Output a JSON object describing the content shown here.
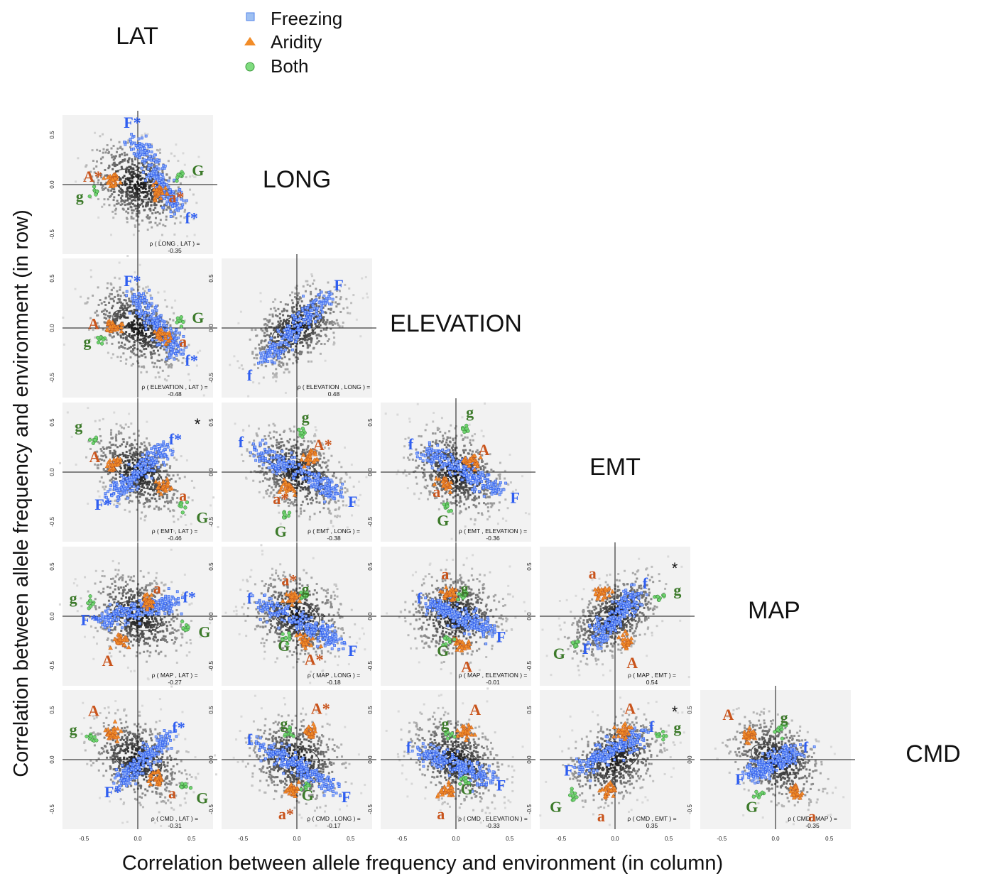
{
  "legend": [
    {
      "label": "Freezing",
      "shape": "square",
      "color": "#4f81e8"
    },
    {
      "label": "Aridity",
      "shape": "triangle",
      "color": "#f28c28"
    },
    {
      "label": "Both",
      "shape": "circle",
      "color": "#5cc95c"
    }
  ],
  "xlabel": "Correlation between allele frequency and environment (in column)",
  "ylabel": "Correlation between allele frequency and environment (in row)",
  "colors": {
    "freezing": "#2f5ef0",
    "aridity": "#c9541c",
    "both": "#3c7a2a",
    "background": "#f2f2f2",
    "cloud": "#cfcfcf"
  },
  "chart_data": {
    "type": "scatter",
    "variables": [
      "LAT",
      "LONG",
      "ELEVATION",
      "EMT",
      "MAP",
      "CMD"
    ],
    "axis_range": [
      -0.7,
      0.7
    ],
    "tick_values": [
      -0.5,
      0.0,
      0.5
    ],
    "tick_labels": [
      "-0.5",
      "0.0",
      "0.5"
    ],
    "panels": [
      {
        "row": "LONG",
        "col": "LAT",
        "rho_label": "ρ ( LONG , LAT ) =",
        "rho_value": "-0.35",
        "rho": -0.35,
        "star": false,
        "annotations": [
          {
            "text": "F*",
            "x": -0.05,
            "y": 0.62,
            "group": "freezing"
          },
          {
            "text": "f*",
            "x": 0.5,
            "y": -0.34,
            "group": "freezing"
          },
          {
            "text": "A*",
            "x": -0.42,
            "y": 0.08,
            "group": "aridity"
          },
          {
            "text": "a*",
            "x": 0.36,
            "y": -0.13,
            "group": "aridity"
          },
          {
            "text": "G",
            "x": 0.56,
            "y": 0.14,
            "group": "both"
          },
          {
            "text": "g",
            "x": -0.54,
            "y": -0.12,
            "group": "both"
          }
        ]
      },
      {
        "row": "ELEVATION",
        "col": "LAT",
        "rho_label": "ρ ( ELEVATION , LAT ) =",
        "rho_value": "-0.48",
        "rho": -0.48,
        "star": false,
        "annotations": [
          {
            "text": "F*",
            "x": -0.05,
            "y": 0.47,
            "group": "freezing"
          },
          {
            "text": "f*",
            "x": 0.5,
            "y": -0.33,
            "group": "freezing"
          },
          {
            "text": "A",
            "x": -0.41,
            "y": 0.04,
            "group": "aridity"
          },
          {
            "text": "a",
            "x": 0.42,
            "y": -0.14,
            "group": "aridity"
          },
          {
            "text": "G",
            "x": 0.56,
            "y": 0.1,
            "group": "both"
          },
          {
            "text": "g",
            "x": -0.47,
            "y": -0.14,
            "group": "both"
          }
        ]
      },
      {
        "row": "ELEVATION",
        "col": "LONG",
        "rho_label": "ρ ( ELEVATION , LONG ) =",
        "rho_value": "0.48",
        "rho": 0.48,
        "star": false,
        "annotations": [
          {
            "text": "F",
            "x": 0.39,
            "y": 0.43,
            "group": "freezing"
          },
          {
            "text": "f",
            "x": -0.44,
            "y": -0.48,
            "group": "freezing"
          }
        ]
      },
      {
        "row": "EMT",
        "col": "LAT",
        "rho_label": "ρ ( EMT , LAT ) =",
        "rho_value": "-0.46",
        "rho": -0.46,
        "star": true,
        "annotations": [
          {
            "text": "f*",
            "x": 0.35,
            "y": 0.33,
            "group": "freezing"
          },
          {
            "text": "F*",
            "x": -0.32,
            "y": -0.33,
            "group": "freezing"
          },
          {
            "text": "A",
            "x": -0.4,
            "y": 0.15,
            "group": "aridity"
          },
          {
            "text": "a",
            "x": 0.42,
            "y": -0.24,
            "group": "aridity"
          },
          {
            "text": "G",
            "x": 0.6,
            "y": -0.46,
            "group": "both"
          },
          {
            "text": "g",
            "x": -0.55,
            "y": 0.46,
            "group": "both"
          }
        ]
      },
      {
        "row": "EMT",
        "col": "LONG",
        "rho_label": "ρ ( EMT , LONG ) =",
        "rho_value": "-0.38",
        "rho": -0.38,
        "star": false,
        "annotations": [
          {
            "text": "f",
            "x": -0.52,
            "y": 0.3,
            "group": "freezing"
          },
          {
            "text": "F",
            "x": 0.52,
            "y": -0.3,
            "group": "freezing"
          },
          {
            "text": "A*",
            "x": 0.24,
            "y": 0.27,
            "group": "aridity"
          },
          {
            "text": "a*",
            "x": -0.15,
            "y": -0.27,
            "group": "aridity"
          },
          {
            "text": "g",
            "x": 0.08,
            "y": 0.55,
            "group": "both"
          },
          {
            "text": "G",
            "x": -0.15,
            "y": -0.6,
            "group": "both"
          }
        ]
      },
      {
        "row": "EMT",
        "col": "ELEVATION",
        "rho_label": "ρ ( EMT , ELEVATION ) =",
        "rho_value": "-0.36",
        "rho": -0.36,
        "star": false,
        "annotations": [
          {
            "text": "f",
            "x": -0.42,
            "y": 0.28,
            "group": "freezing"
          },
          {
            "text": "F",
            "x": 0.55,
            "y": -0.26,
            "group": "freezing"
          },
          {
            "text": "A",
            "x": 0.26,
            "y": 0.22,
            "group": "aridity"
          },
          {
            "text": "a",
            "x": -0.18,
            "y": -0.2,
            "group": "aridity"
          },
          {
            "text": "g",
            "x": 0.13,
            "y": 0.6,
            "group": "both"
          },
          {
            "text": "G",
            "x": -0.12,
            "y": -0.49,
            "group": "both"
          }
        ]
      },
      {
        "row": "MAP",
        "col": "LAT",
        "rho_label": "ρ ( MAP , LAT ) =",
        "rho_value": "-0.27",
        "rho": -0.27,
        "star": false,
        "annotations": [
          {
            "text": "f*",
            "x": 0.48,
            "y": 0.19,
            "group": "freezing"
          },
          {
            "text": "F*",
            "x": -0.45,
            "y": -0.04,
            "group": "freezing"
          },
          {
            "text": "a",
            "x": 0.18,
            "y": 0.28,
            "group": "aridity"
          },
          {
            "text": "A",
            "x": -0.28,
            "y": -0.45,
            "group": "aridity"
          },
          {
            "text": "G",
            "x": 0.62,
            "y": -0.16,
            "group": "both"
          },
          {
            "text": "g",
            "x": -0.6,
            "y": 0.18,
            "group": "both"
          }
        ]
      },
      {
        "row": "MAP",
        "col": "LONG",
        "rho_label": "ρ ( MAP , LONG ) =",
        "rho_value": "-0.18",
        "rho": -0.18,
        "star": false,
        "annotations": [
          {
            "text": "f",
            "x": -0.44,
            "y": 0.18,
            "group": "freezing"
          },
          {
            "text": "F",
            "x": 0.52,
            "y": -0.35,
            "group": "freezing"
          },
          {
            "text": "a*",
            "x": -0.07,
            "y": 0.36,
            "group": "aridity"
          },
          {
            "text": "A*",
            "x": 0.16,
            "y": -0.44,
            "group": "aridity"
          },
          {
            "text": "g",
            "x": 0.08,
            "y": 0.27,
            "group": "both"
          },
          {
            "text": "G",
            "x": -0.12,
            "y": -0.3,
            "group": "both"
          }
        ]
      },
      {
        "row": "MAP",
        "col": "ELEVATION",
        "rho_label": "ρ ( MAP , ELEVATION ) =",
        "rho_value": "-0.01",
        "rho": -0.01,
        "star": false,
        "annotations": [
          {
            "text": "f",
            "x": -0.34,
            "y": 0.18,
            "group": "freezing"
          },
          {
            "text": "F",
            "x": 0.42,
            "y": -0.21,
            "group": "freezing"
          },
          {
            "text": "a",
            "x": -0.1,
            "y": 0.42,
            "group": "aridity"
          },
          {
            "text": "A",
            "x": 0.1,
            "y": -0.51,
            "group": "aridity"
          },
          {
            "text": "g",
            "x": 0.08,
            "y": 0.28,
            "group": "both"
          },
          {
            "text": "G",
            "x": -0.12,
            "y": -0.35,
            "group": "both"
          }
        ]
      },
      {
        "row": "MAP",
        "col": "EMT",
        "rho_label": "ρ ( MAP , EMT ) =",
        "rho_value": "0.54",
        "rho": 0.54,
        "star": true,
        "annotations": [
          {
            "text": "f",
            "x": 0.28,
            "y": 0.33,
            "group": "freezing"
          },
          {
            "text": "F",
            "x": -0.26,
            "y": -0.33,
            "group": "freezing"
          },
          {
            "text": "a",
            "x": -0.21,
            "y": 0.43,
            "group": "aridity"
          },
          {
            "text": "A",
            "x": 0.16,
            "y": -0.47,
            "group": "aridity"
          },
          {
            "text": "g",
            "x": 0.58,
            "y": 0.26,
            "group": "both"
          },
          {
            "text": "G",
            "x": -0.52,
            "y": -0.38,
            "group": "both"
          }
        ]
      },
      {
        "row": "CMD",
        "col": "LAT",
        "rho_label": "ρ ( CMD , LAT ) =",
        "rho_value": "-0.31",
        "rho": -0.31,
        "star": false,
        "annotations": [
          {
            "text": "f*",
            "x": 0.38,
            "y": 0.32,
            "group": "freezing"
          },
          {
            "text": "F*",
            "x": -0.23,
            "y": -0.33,
            "group": "freezing"
          },
          {
            "text": "A",
            "x": -0.41,
            "y": 0.49,
            "group": "aridity"
          },
          {
            "text": "a",
            "x": 0.32,
            "y": -0.34,
            "group": "aridity"
          },
          {
            "text": "g",
            "x": -0.6,
            "y": 0.3,
            "group": "both"
          },
          {
            "text": "G",
            "x": 0.6,
            "y": -0.39,
            "group": "both"
          }
        ]
      },
      {
        "row": "CMD",
        "col": "LONG",
        "rho_label": "ρ ( CMD , LONG ) =",
        "rho_value": "-0.17",
        "rho": -0.17,
        "star": false,
        "annotations": [
          {
            "text": "f",
            "x": -0.44,
            "y": 0.2,
            "group": "freezing"
          },
          {
            "text": "F",
            "x": 0.46,
            "y": -0.38,
            "group": "freezing"
          },
          {
            "text": "A*",
            "x": 0.22,
            "y": 0.51,
            "group": "aridity"
          },
          {
            "text": "a*",
            "x": -0.1,
            "y": -0.55,
            "group": "aridity"
          },
          {
            "text": "g",
            "x": -0.12,
            "y": 0.36,
            "group": "both"
          },
          {
            "text": "G",
            "x": 0.1,
            "y": -0.36,
            "group": "both"
          }
        ]
      },
      {
        "row": "CMD",
        "col": "ELEVATION",
        "rho_label": "ρ ( CMD , ELEVATION ) =",
        "rho_value": "-0.33",
        "rho": -0.33,
        "star": false,
        "annotations": [
          {
            "text": "f",
            "x": -0.44,
            "y": 0.12,
            "group": "freezing"
          },
          {
            "text": "F",
            "x": 0.42,
            "y": -0.26,
            "group": "freezing"
          },
          {
            "text": "A",
            "x": 0.18,
            "y": 0.5,
            "group": "aridity"
          },
          {
            "text": "a",
            "x": -0.14,
            "y": -0.55,
            "group": "aridity"
          },
          {
            "text": "g",
            "x": -0.1,
            "y": 0.36,
            "group": "both"
          },
          {
            "text": "G",
            "x": 0.1,
            "y": -0.3,
            "group": "both"
          }
        ]
      },
      {
        "row": "CMD",
        "col": "EMT",
        "rho_label": "ρ ( CMD , EMT ) =",
        "rho_value": "0.35",
        "rho": 0.35,
        "star": true,
        "annotations": [
          {
            "text": "f",
            "x": 0.34,
            "y": 0.33,
            "group": "freezing"
          },
          {
            "text": "F",
            "x": -0.43,
            "y": -0.11,
            "group": "freezing"
          },
          {
            "text": "A",
            "x": 0.14,
            "y": 0.51,
            "group": "aridity"
          },
          {
            "text": "a",
            "x": -0.13,
            "y": -0.57,
            "group": "aridity"
          },
          {
            "text": "g",
            "x": 0.58,
            "y": 0.32,
            "group": "both"
          },
          {
            "text": "G",
            "x": -0.55,
            "y": -0.48,
            "group": "both"
          }
        ]
      },
      {
        "row": "CMD",
        "col": "MAP",
        "rho_label": "ρ ( CMD , MAP ) =",
        "rho_value": "-0.35",
        "rho": -0.35,
        "star": false,
        "annotations": [
          {
            "text": "f",
            "x": 0.28,
            "y": 0.12,
            "group": "freezing"
          },
          {
            "text": "F",
            "x": -0.33,
            "y": -0.2,
            "group": "freezing"
          },
          {
            "text": "A",
            "x": -0.44,
            "y": 0.45,
            "group": "aridity"
          },
          {
            "text": "a",
            "x": 0.34,
            "y": -0.57,
            "group": "aridity"
          },
          {
            "text": "g",
            "x": 0.08,
            "y": 0.42,
            "group": "both"
          },
          {
            "text": "G",
            "x": -0.22,
            "y": -0.48,
            "group": "both"
          }
        ]
      }
    ]
  }
}
